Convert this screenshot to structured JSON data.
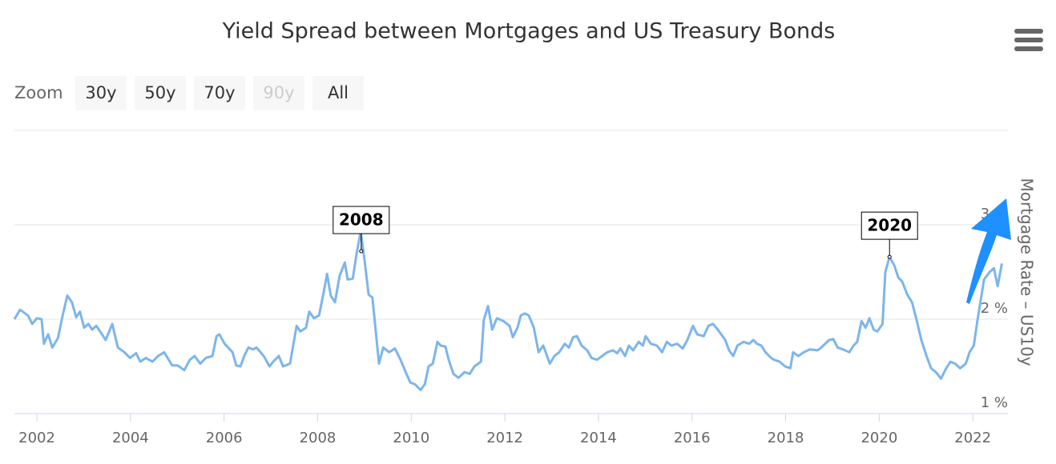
{
  "chart_data": {
    "type": "line",
    "title": "Yield Spread between Mortgages and US Treasury Bonds",
    "y_axis_label": "Mortgage Rate – US10y",
    "range_selector": {
      "label": "Zoom",
      "buttons": [
        "30y",
        "50y",
        "70y",
        "90y",
        "All"
      ],
      "disabled_index": 3
    },
    "x": [
      2001.52,
      2001.64,
      2001.81,
      2001.9,
      2002.0,
      2002.1,
      2002.15,
      2002.24,
      2002.33,
      2002.45,
      2002.55,
      2002.65,
      2002.75,
      2002.84,
      2002.92,
      2003.01,
      2003.1,
      2003.18,
      2003.27,
      2003.35,
      2003.47,
      2003.61,
      2003.73,
      2003.87,
      2003.99,
      2004.12,
      2004.21,
      2004.33,
      2004.47,
      2004.59,
      2004.72,
      2004.89,
      2005.01,
      2005.15,
      2005.27,
      2005.37,
      2005.49,
      2005.61,
      2005.75,
      2005.84,
      2005.9,
      2006.01,
      2006.18,
      2006.26,
      2006.35,
      2006.43,
      2006.52,
      2006.62,
      2006.69,
      2006.78,
      2006.86,
      2006.97,
      2007.05,
      2007.17,
      2007.26,
      2007.41,
      2007.55,
      2007.63,
      2007.75,
      2007.82,
      2007.92,
      2008.03,
      2008.13,
      2008.2,
      2008.28,
      2008.37,
      2008.47,
      2008.58,
      2008.64,
      2008.75,
      2008.83,
      2008.92,
      2009.0,
      2009.09,
      2009.17,
      2009.31,
      2009.4,
      2009.53,
      2009.65,
      2009.77,
      2009.88,
      2009.98,
      2010.08,
      2010.2,
      2010.29,
      2010.37,
      2010.46,
      2010.56,
      2010.63,
      2010.73,
      2010.8,
      2010.9,
      2011.01,
      2011.14,
      2011.25,
      2011.35,
      2011.49,
      2011.55,
      2011.64,
      2011.73,
      2011.83,
      2011.97,
      2012.1,
      2012.17,
      2012.27,
      2012.34,
      2012.43,
      2012.51,
      2012.62,
      2012.72,
      2012.82,
      2012.96,
      2013.06,
      2013.16,
      2013.28,
      2013.37,
      2013.46,
      2013.54,
      2013.64,
      2013.76,
      2013.85,
      2013.97,
      2014.05,
      2014.19,
      2014.31,
      2014.4,
      2014.47,
      2014.57,
      2014.65,
      2014.74,
      2014.86,
      2014.95,
      2015.01,
      2015.12,
      2015.25,
      2015.36,
      2015.46,
      2015.56,
      2015.68,
      2015.8,
      2015.9,
      2016.02,
      2016.11,
      2016.25,
      2016.35,
      2016.45,
      2016.55,
      2016.71,
      2016.79,
      2016.88,
      2016.97,
      2017.1,
      2017.22,
      2017.31,
      2017.39,
      2017.48,
      2017.57,
      2017.69,
      2017.75,
      2017.87,
      2017.99,
      2018.1,
      2018.16,
      2018.27,
      2018.39,
      2018.51,
      2018.68,
      2018.76,
      2018.93,
      2019.02,
      2019.11,
      2019.23,
      2019.36,
      2019.45,
      2019.53,
      2019.62,
      2019.71,
      2019.79,
      2019.88,
      2019.96,
      2020.07,
      2020.13,
      2020.22,
      2020.32,
      2020.41,
      2020.49,
      2020.6,
      2020.7,
      2020.8,
      2020.9,
      2021.01,
      2021.11,
      2021.21,
      2021.32,
      2021.42,
      2021.52,
      2021.62,
      2021.73,
      2021.85,
      2021.93,
      2022.02,
      2022.1,
      2022.24,
      2022.36,
      2022.45,
      2022.53,
      2022.62
    ],
    "values": [
      2.0,
      2.1,
      2.04,
      1.95,
      2.01,
      2.0,
      1.74,
      1.84,
      1.7,
      1.8,
      2.04,
      2.25,
      2.18,
      2.02,
      2.08,
      1.91,
      1.95,
      1.89,
      1.93,
      1.87,
      1.78,
      1.95,
      1.7,
      1.65,
      1.59,
      1.64,
      1.55,
      1.59,
      1.55,
      1.61,
      1.65,
      1.51,
      1.51,
      1.46,
      1.57,
      1.61,
      1.53,
      1.59,
      1.61,
      1.82,
      1.84,
      1.74,
      1.65,
      1.51,
      1.5,
      1.61,
      1.7,
      1.68,
      1.7,
      1.65,
      1.6,
      1.5,
      1.55,
      1.61,
      1.5,
      1.53,
      1.93,
      1.87,
      1.91,
      2.08,
      2.01,
      2.04,
      2.29,
      2.48,
      2.25,
      2.18,
      2.46,
      2.6,
      2.42,
      2.43,
      2.69,
      2.93,
      2.63,
      2.26,
      2.23,
      1.53,
      1.7,
      1.65,
      1.69,
      1.57,
      1.44,
      1.33,
      1.31,
      1.25,
      1.31,
      1.5,
      1.53,
      1.76,
      1.72,
      1.71,
      1.57,
      1.42,
      1.38,
      1.44,
      1.42,
      1.5,
      1.55,
      1.99,
      2.14,
      1.89,
      2.01,
      1.98,
      1.93,
      1.81,
      1.91,
      2.04,
      2.06,
      2.04,
      1.91,
      1.65,
      1.72,
      1.53,
      1.61,
      1.65,
      1.74,
      1.7,
      1.81,
      1.82,
      1.72,
      1.67,
      1.59,
      1.57,
      1.6,
      1.65,
      1.67,
      1.64,
      1.69,
      1.61,
      1.72,
      1.67,
      1.76,
      1.72,
      1.82,
      1.74,
      1.72,
      1.65,
      1.76,
      1.72,
      1.74,
      1.69,
      1.78,
      1.93,
      1.84,
      1.82,
      1.93,
      1.95,
      1.89,
      1.78,
      1.67,
      1.61,
      1.72,
      1.76,
      1.74,
      1.78,
      1.74,
      1.72,
      1.65,
      1.59,
      1.57,
      1.55,
      1.5,
      1.48,
      1.65,
      1.61,
      1.65,
      1.68,
      1.67,
      1.7,
      1.78,
      1.79,
      1.7,
      1.68,
      1.65,
      1.72,
      1.76,
      1.98,
      1.91,
      2.01,
      1.89,
      1.87,
      1.95,
      2.5,
      2.66,
      2.57,
      2.44,
      2.4,
      2.26,
      2.18,
      1.99,
      1.78,
      1.61,
      1.48,
      1.44,
      1.37,
      1.47,
      1.55,
      1.53,
      1.48,
      1.53,
      1.65,
      1.72,
      1.99,
      2.42,
      2.5,
      2.54,
      2.35,
      2.59
    ],
    "color": "#7cb5ec",
    "xlim": [
      2001.52,
      2022.75
    ],
    "xticks": [
      2002,
      2004,
      2006,
      2008,
      2010,
      2012,
      2014,
      2016,
      2018,
      2020,
      2022
    ],
    "ylim": [
      1,
      4
    ],
    "yticks": [
      {
        "value": 1,
        "label": "1 %"
      },
      {
        "value": 2,
        "label": "2 %"
      },
      {
        "value": 3,
        "label": "3 %"
      }
    ],
    "grid": true,
    "annotations": [
      {
        "label": "2008",
        "x": 2008.93,
        "y": 2.72
      },
      {
        "label": "2020",
        "x": 2020.22,
        "y": 2.66
      }
    ]
  }
}
